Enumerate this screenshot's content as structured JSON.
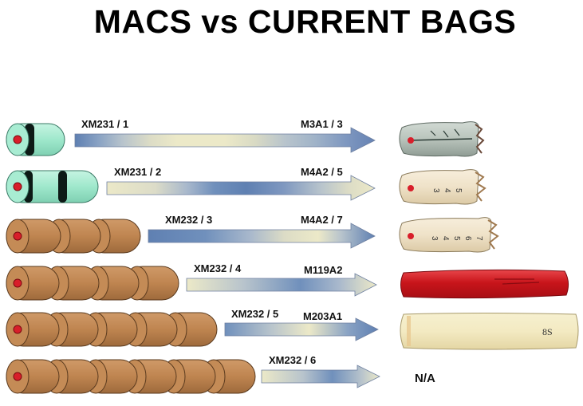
{
  "title": "MACS vs CURRENT BAGS",
  "colors": {
    "xm231_body": "#9fe8cc",
    "xm232_body": "#bf8550",
    "primer": "#d81e2a",
    "arrow_dark": "#5f80b2",
    "arrow_light": "#ece9c8",
    "bag_tan": "#efe2c8",
    "bag_gray": "#b9c4bc",
    "bag_red": "#c8151b",
    "bag_cream": "#f3eac2"
  },
  "rows": [
    {
      "macs_label": "XM231 / 1",
      "bag_label": "M3A1 / 3",
      "module_type": "XM231",
      "module_count": 1,
      "bag_style": "gray-bag"
    },
    {
      "macs_label": "XM231 / 2",
      "bag_label": "M4A2 / 5",
      "module_type": "XM231",
      "module_count": 2,
      "bag_style": "tan-bag-numbered"
    },
    {
      "macs_label": "XM232 / 3",
      "bag_label": "M4A2 / 7",
      "module_type": "XM232",
      "module_count": 3,
      "bag_style": "tan-bag-numbered"
    },
    {
      "macs_label": "XM232 / 4",
      "bag_label": "M119A2",
      "module_type": "XM232",
      "module_count": 4,
      "bag_style": "red-bag"
    },
    {
      "macs_label": "XM232 / 5",
      "bag_label": "M203A1",
      "module_type": "XM232",
      "module_count": 5,
      "bag_style": "cream-bag",
      "bag_marking": "8S"
    },
    {
      "macs_label": "XM232 / 6",
      "bag_label": "",
      "module_type": "XM232",
      "module_count": 6,
      "bag_style": "none",
      "bag_text": "N/A"
    }
  ]
}
